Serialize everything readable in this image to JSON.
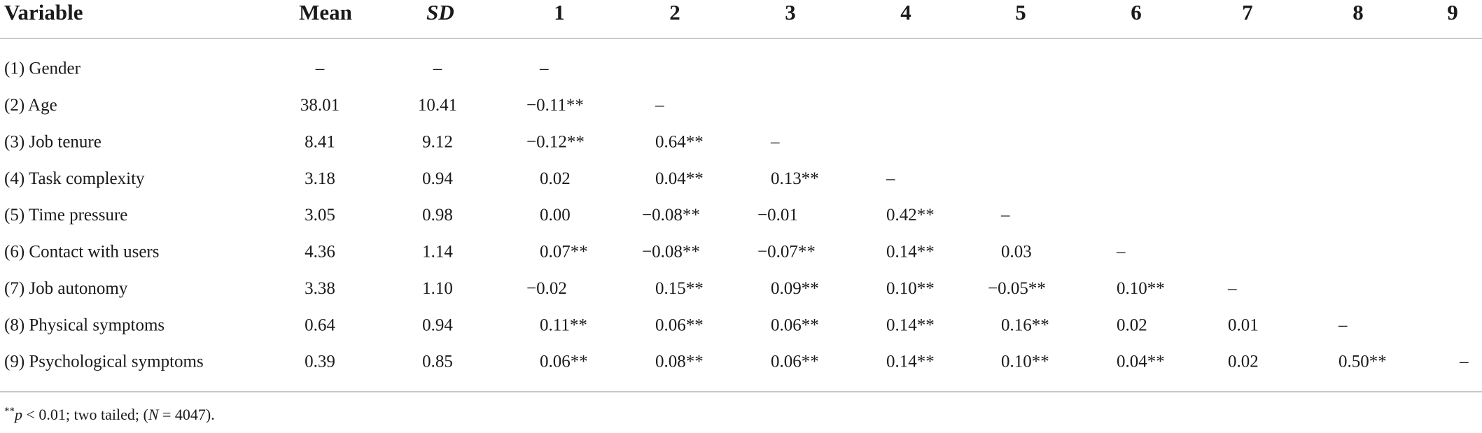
{
  "table": {
    "headers": [
      "Variable",
      "Mean",
      "SD",
      "1",
      "2",
      "3",
      "4",
      "5",
      "6",
      "7",
      "8",
      "9"
    ],
    "rows": [
      {
        "variable": "(1) Gender",
        "mean": "–",
        "sd": "–",
        "correlations": [
          "–"
        ]
      },
      {
        "variable": "(2) Age",
        "mean": "38.01",
        "sd": "10.41",
        "correlations": [
          "−0.11**",
          "–"
        ]
      },
      {
        "variable": "(3) Job tenure",
        "mean": "8.41",
        "sd": "9.12",
        "correlations": [
          "−0.12**",
          "0.64**",
          "–"
        ]
      },
      {
        "variable": "(4) Task complexity",
        "mean": "3.18",
        "sd": "0.94",
        "correlations": [
          "0.02",
          "0.04**",
          "0.13**",
          "–"
        ]
      },
      {
        "variable": "(5) Time pressure",
        "mean": "3.05",
        "sd": "0.98",
        "correlations": [
          "0.00",
          "−0.08**",
          "−0.01",
          "0.42**",
          "–"
        ]
      },
      {
        "variable": "(6) Contact with users",
        "mean": "4.36",
        "sd": "1.14",
        "correlations": [
          "0.07**",
          "−0.08**",
          "−0.07**",
          "0.14**",
          "0.03",
          "–"
        ]
      },
      {
        "variable": "(7) Job autonomy",
        "mean": "3.38",
        "sd": "1.10",
        "correlations": [
          "−0.02",
          "0.15**",
          "0.09**",
          "0.10**",
          "−0.05**",
          "0.10**",
          "–"
        ]
      },
      {
        "variable": "(8) Physical symptoms",
        "mean": "0.64",
        "sd": "0.94",
        "correlations": [
          "0.11**",
          "0.06**",
          "0.06**",
          "0.14**",
          "0.16**",
          "0.02",
          "0.01",
          "–"
        ]
      },
      {
        "variable": "(9) Psychological symptoms",
        "mean": "0.39",
        "sd": "0.85",
        "correlations": [
          "0.06**",
          "0.08**",
          "0.06**",
          "0.14**",
          "0.10**",
          "0.04**",
          "0.02",
          "0.50**",
          "–"
        ]
      }
    ],
    "footnote": [
      "**",
      "p",
      " < 0.01; two tailed; (",
      "N",
      " = 4047)."
    ]
  }
}
